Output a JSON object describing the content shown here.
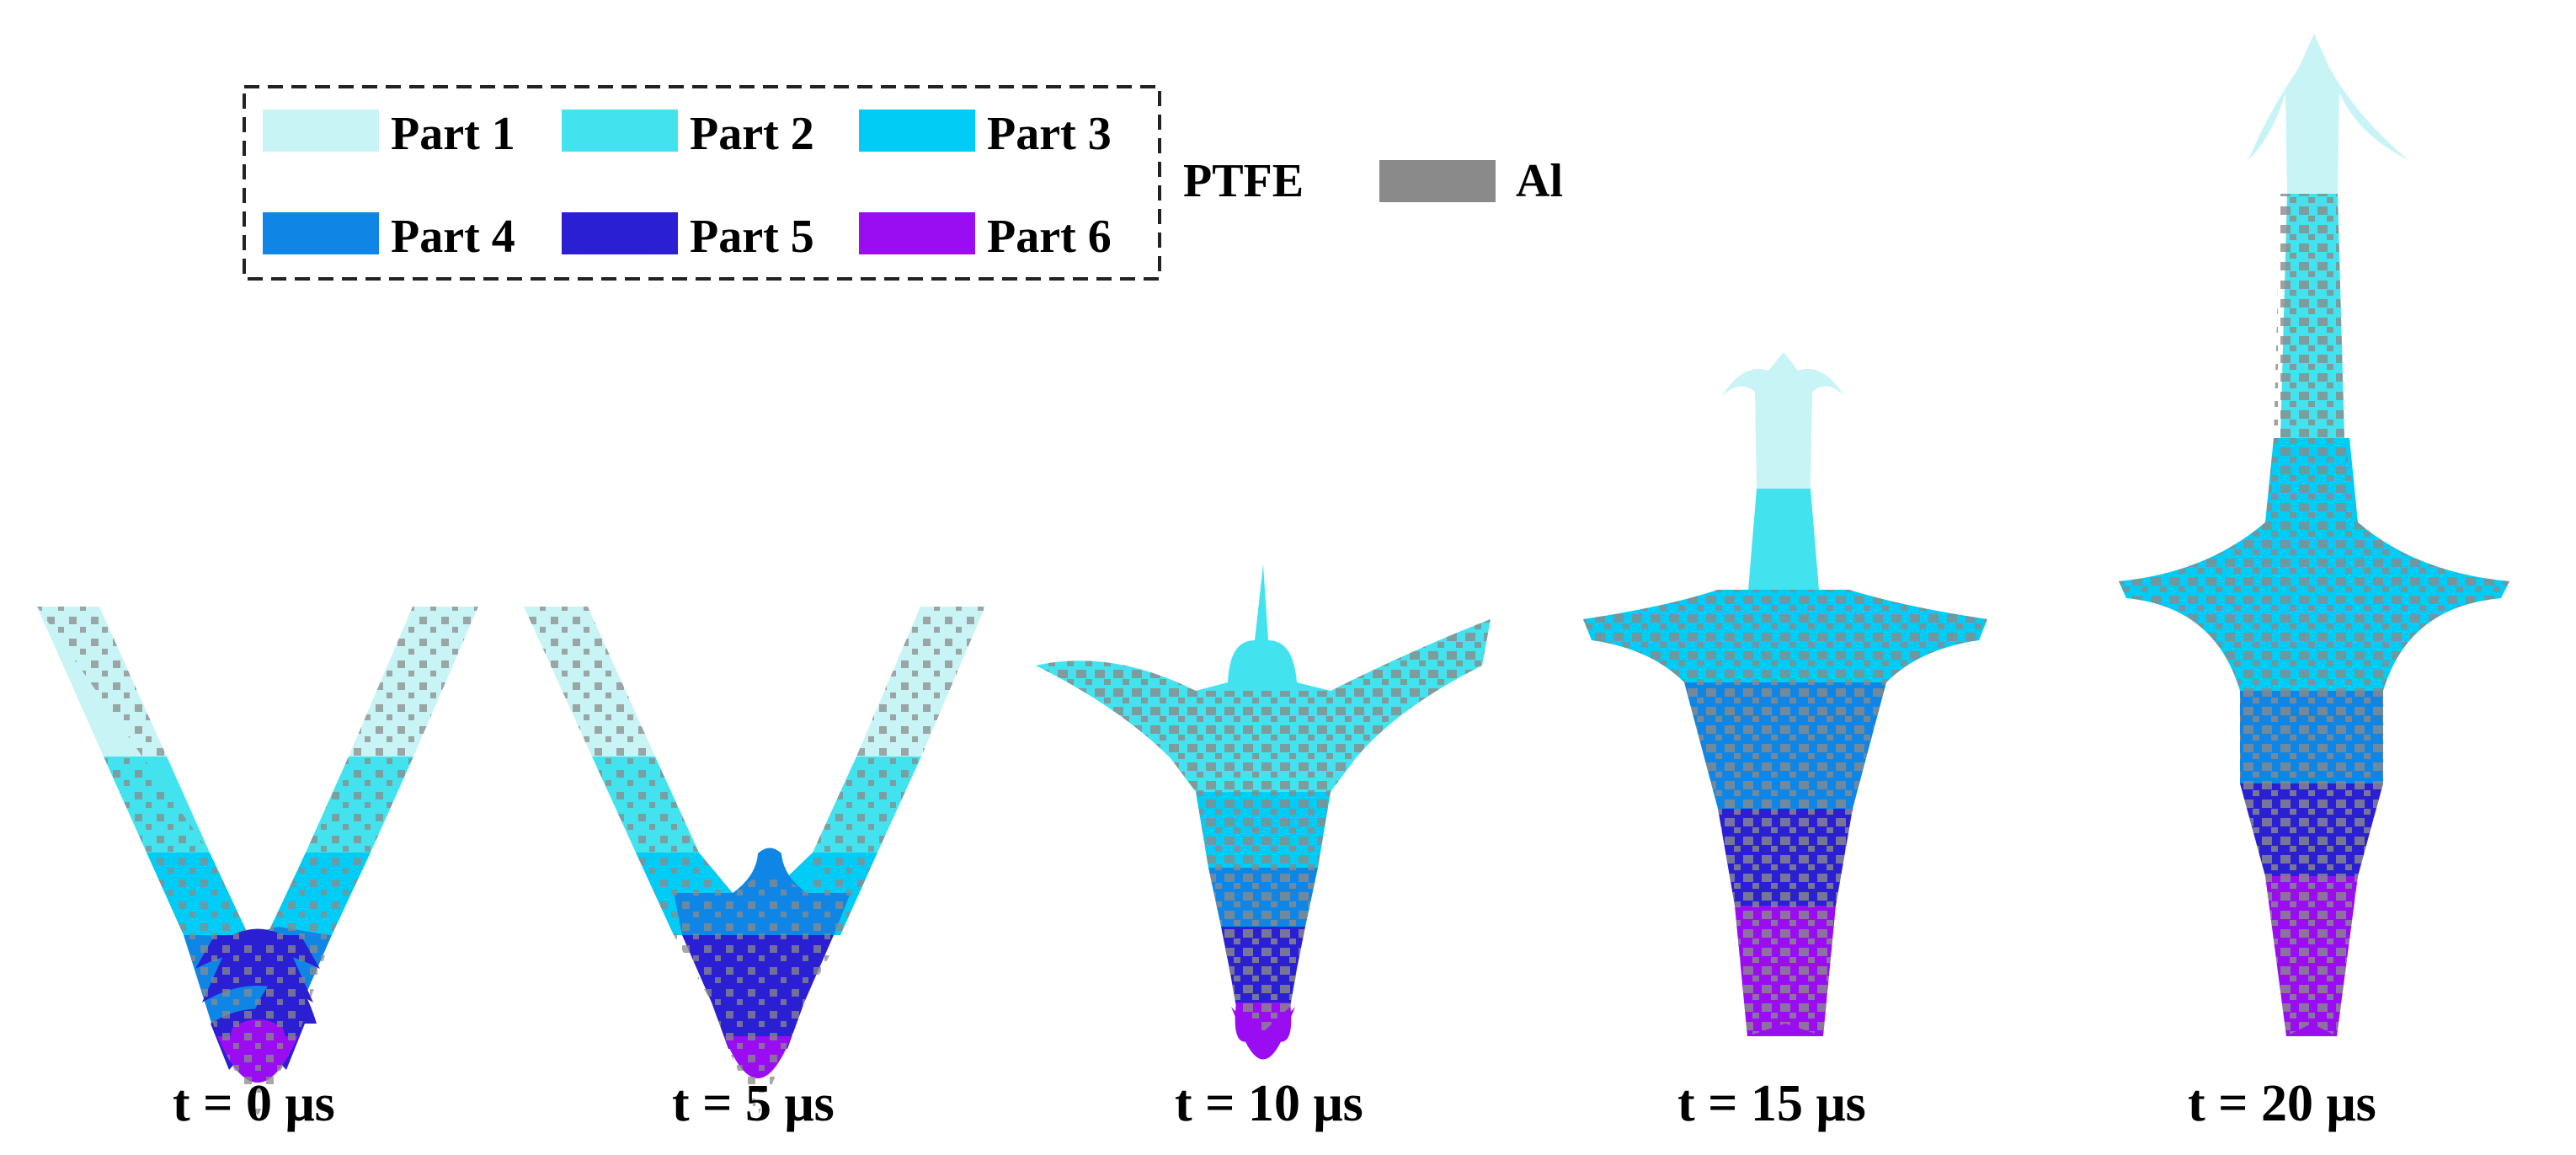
{
  "legend": {
    "parts": [
      {
        "label": "Part 1",
        "color": "#c8f4f6"
      },
      {
        "label": "Part 2",
        "color": "#42e3ee"
      },
      {
        "label": "Part 3",
        "color": "#00ccf5"
      },
      {
        "label": "Part 4",
        "color": "#0f86e6"
      },
      {
        "label": "Part 5",
        "color": "#2a1fd2"
      },
      {
        "label": "Part 6",
        "color": "#9a0cf2"
      }
    ],
    "ptfe_label": "PTFE",
    "al_label": "Al",
    "al_color": "#8a8a8a"
  },
  "panels": [
    {
      "caption": "t = 0 μs"
    },
    {
      "caption": "t = 5 μs"
    },
    {
      "caption": "t = 10 μs"
    },
    {
      "caption": "t = 15 μs"
    },
    {
      "caption": "t = 20 μs"
    }
  ]
}
